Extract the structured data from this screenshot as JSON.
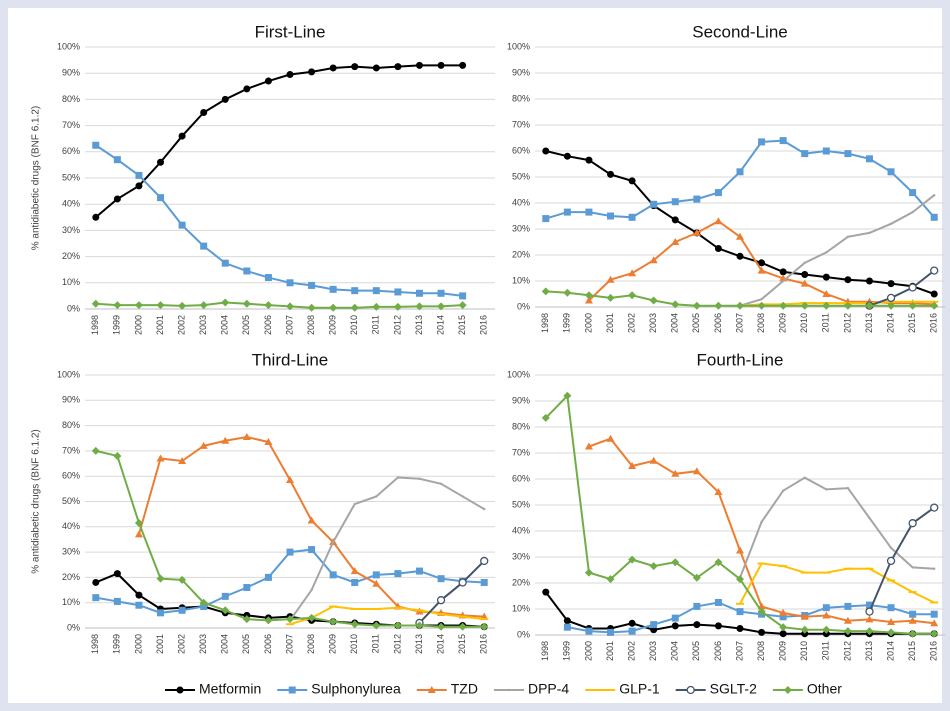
{
  "chart_data": [
    {
      "type": "line",
      "title": "First-Line",
      "ylabel": "% antidiabetic drugs (BNF 6.1.2)",
      "categories": [
        "1998",
        "1999",
        "2000",
        "2001",
        "2002",
        "2003",
        "2004",
        "2005",
        "2006",
        "2007",
        "2008",
        "2009",
        "2010",
        "2011",
        "2012",
        "2013",
        "2014",
        "2015",
        "2016"
      ],
      "ylim": [
        0,
        100
      ],
      "yticks": [
        {
          "value": 0,
          "label": "0%"
        },
        {
          "value": 10,
          "label": "10%"
        },
        {
          "value": 20,
          "label": "20%"
        },
        {
          "value": 30,
          "label": "30%"
        },
        {
          "value": 40,
          "label": "40%"
        },
        {
          "value": 50,
          "label": "50%"
        },
        {
          "value": 60,
          "label": "60%"
        },
        {
          "value": 70,
          "label": "70%"
        },
        {
          "value": 80,
          "label": "80%"
        },
        {
          "value": 90,
          "label": "90%"
        },
        {
          "value": 100,
          "label": "100%"
        }
      ],
      "grid": true,
      "series": [
        {
          "name": "Metformin",
          "color": "#000000",
          "marker": "circle",
          "values": [
            35,
            42,
            47,
            56,
            66,
            75,
            80,
            84,
            87,
            89.5,
            90.5,
            92,
            92.5,
            92,
            92.5,
            93,
            93,
            93,
            null
          ]
        },
        {
          "name": "Sulphonylurea",
          "color": "#5b9bd5",
          "marker": "square",
          "values": [
            62.5,
            57,
            51,
            42.5,
            32,
            24,
            17.5,
            14.5,
            12,
            10,
            9,
            7.5,
            7,
            7,
            6.5,
            6,
            6,
            5,
            null
          ]
        },
        {
          "name": "Other",
          "color": "#70ad47",
          "marker": "diamond",
          "values": [
            2,
            1.5,
            1.5,
            1.5,
            1.2,
            1.5,
            2.5,
            2,
            1.5,
            1,
            0.5,
            0.5,
            0.5,
            0.8,
            0.8,
            1,
            1,
            1.5,
            null
          ]
        }
      ]
    },
    {
      "type": "line",
      "title": "Second-Line",
      "categories": [
        "1998",
        "1999",
        "2000",
        "2001",
        "2002",
        "2003",
        "2004",
        "2005",
        "2006",
        "2007",
        "2008",
        "2009",
        "2010",
        "2011",
        "2012",
        "2013",
        "2014",
        "2015",
        "2016"
      ],
      "ylim": [
        0,
        100
      ],
      "yticks": [
        {
          "value": 0,
          "label": "0%"
        },
        {
          "value": 10,
          "label": "10%"
        },
        {
          "value": 20,
          "label": "20%"
        },
        {
          "value": 30,
          "label": "30%"
        },
        {
          "value": 40,
          "label": "40%"
        },
        {
          "value": 50,
          "label": "50%"
        },
        {
          "value": 60,
          "label": "60%"
        },
        {
          "value": 70,
          "label": "70%"
        },
        {
          "value": 80,
          "label": "80%"
        },
        {
          "value": 90,
          "label": "90%"
        },
        {
          "value": 100,
          "label": "100%"
        }
      ],
      "grid": true,
      "series": [
        {
          "name": "Metformin",
          "color": "#000000",
          "marker": "circle",
          "values": [
            60,
            58,
            56.5,
            51,
            48.5,
            39,
            33.5,
            28.5,
            22.5,
            19.5,
            17,
            13.5,
            12.5,
            11.5,
            10.5,
            10,
            9,
            8,
            5
          ]
        },
        {
          "name": "Sulphonylurea",
          "color": "#5b9bd5",
          "marker": "square",
          "values": [
            34,
            36.5,
            36.5,
            35,
            34.5,
            39.5,
            40.5,
            41.5,
            44,
            52,
            63.5,
            64,
            59,
            60,
            59,
            57,
            52,
            44,
            34.5
          ]
        },
        {
          "name": "TZD",
          "color": "#ed7d31",
          "marker": "triangle",
          "values": [
            null,
            null,
            2.5,
            10.5,
            13,
            18,
            25,
            28.5,
            33,
            27,
            14,
            11,
            9,
            5,
            2,
            2,
            1.5,
            1.5,
            1
          ]
        },
        {
          "name": "DPP-4",
          "color": "#a5a5a5",
          "marker": "none",
          "values": [
            null,
            null,
            null,
            null,
            null,
            null,
            null,
            null,
            null,
            0.5,
            3,
            10,
            17,
            21,
            27,
            28.5,
            32,
            36.5,
            43
          ]
        },
        {
          "name": "GLP-1",
          "color": "#ffc000",
          "marker": "dash",
          "values": [
            null,
            null,
            null,
            null,
            null,
            null,
            null,
            null,
            null,
            0.5,
            1,
            1,
            1.5,
            1.5,
            1.5,
            1.5,
            2,
            2,
            2
          ]
        },
        {
          "name": "SGLT-2",
          "color": "#44546a",
          "marker": "open-circle",
          "values": [
            null,
            null,
            null,
            null,
            null,
            null,
            null,
            null,
            null,
            null,
            null,
            null,
            null,
            null,
            null,
            0.5,
            3.5,
            7.5,
            14
          ]
        },
        {
          "name": "Other",
          "color": "#70ad47",
          "marker": "diamond",
          "values": [
            6,
            5.5,
            4.5,
            3.5,
            4.5,
            2.5,
            1,
            0.5,
            0.5,
            0.5,
            0.5,
            0.5,
            0.5,
            0.5,
            0.5,
            0.5,
            0.5,
            0.5,
            0.5
          ]
        }
      ]
    },
    {
      "type": "line",
      "title": "Third-Line",
      "ylabel": "% antidiabetic drugs (BNF 6.1.2)",
      "categories": [
        "1998",
        "1999",
        "2000",
        "2001",
        "2002",
        "2003",
        "2004",
        "2005",
        "2006",
        "2007",
        "2008",
        "2009",
        "2010",
        "2011",
        "2012",
        "2013",
        "2014",
        "2015",
        "2016"
      ],
      "ylim": [
        0,
        100
      ],
      "yticks": [
        {
          "value": 0,
          "label": "0%"
        },
        {
          "value": 10,
          "label": "10%"
        },
        {
          "value": 20,
          "label": "20%"
        },
        {
          "value": 30,
          "label": "30%"
        },
        {
          "value": 40,
          "label": "40%"
        },
        {
          "value": 50,
          "label": "50%"
        },
        {
          "value": 60,
          "label": "60%"
        },
        {
          "value": 70,
          "label": "70%"
        },
        {
          "value": 80,
          "label": "80%"
        },
        {
          "value": 90,
          "label": "90%"
        },
        {
          "value": 100,
          "label": "100%"
        }
      ],
      "grid": true,
      "series": [
        {
          "name": "Metformin",
          "color": "#000000",
          "marker": "circle",
          "values": [
            18,
            21.5,
            13,
            7.5,
            8,
            8.5,
            6,
            5,
            4,
            4.5,
            3,
            2.5,
            2,
            1.5,
            1,
            1,
            1,
            1,
            0.5
          ]
        },
        {
          "name": "Sulphonylurea",
          "color": "#5b9bd5",
          "marker": "square",
          "values": [
            12,
            10.5,
            9,
            6,
            7,
            8.5,
            12.5,
            16,
            20,
            30,
            31,
            21,
            18,
            21,
            21.5,
            22.5,
            19.5,
            18.5,
            18
          ]
        },
        {
          "name": "TZD",
          "color": "#ed7d31",
          "marker": "triangle",
          "values": [
            null,
            null,
            37,
            67,
            66,
            72,
            74,
            75.5,
            73.5,
            58.5,
            42.5,
            34,
            22.5,
            17.5,
            8.5,
            6.5,
            6,
            5,
            4.5
          ]
        },
        {
          "name": "DPP-4",
          "color": "#a5a5a5",
          "marker": "none",
          "values": [
            null,
            null,
            null,
            null,
            null,
            null,
            null,
            null,
            null,
            3,
            15,
            34,
            49,
            52,
            59.5,
            59,
            57,
            52,
            47
          ]
        },
        {
          "name": "GLP-1",
          "color": "#ffc000",
          "marker": "dash",
          "values": [
            null,
            null,
            null,
            null,
            null,
            null,
            null,
            null,
            null,
            1.5,
            4,
            8.5,
            7.5,
            7.5,
            8,
            7,
            5.5,
            4.5,
            3.5
          ]
        },
        {
          "name": "SGLT-2",
          "color": "#44546a",
          "marker": "open-circle",
          "values": [
            null,
            null,
            null,
            null,
            null,
            null,
            null,
            null,
            null,
            null,
            null,
            null,
            null,
            null,
            null,
            2,
            11,
            18,
            26.5
          ]
        },
        {
          "name": "Other",
          "color": "#70ad47",
          "marker": "diamond",
          "values": [
            70,
            68,
            41.5,
            19.5,
            19,
            10,
            7,
            3.5,
            3,
            3.5,
            4,
            2.5,
            1.5,
            1,
            1,
            1,
            0.5,
            0.5,
            0.5
          ]
        }
      ]
    },
    {
      "type": "line",
      "title": "Fourth-Line",
      "categories": [
        "1998",
        "1999",
        "2000",
        "2001",
        "2002",
        "2003",
        "2004",
        "2005",
        "2006",
        "2007",
        "2008",
        "2009",
        "2010",
        "2011",
        "2012",
        "2013",
        "2014",
        "2015",
        "2016"
      ],
      "ylim": [
        0,
        100
      ],
      "yticks": [
        {
          "value": 0,
          "label": "0%"
        },
        {
          "value": 10,
          "label": "10%"
        },
        {
          "value": 20,
          "label": "20%"
        },
        {
          "value": 30,
          "label": "30%"
        },
        {
          "value": 40,
          "label": "40%"
        },
        {
          "value": 50,
          "label": "50%"
        },
        {
          "value": 60,
          "label": "60%"
        },
        {
          "value": 70,
          "label": "70%"
        },
        {
          "value": 80,
          "label": "80%"
        },
        {
          "value": 90,
          "label": "90%"
        },
        {
          "value": 100,
          "label": "100%"
        }
      ],
      "grid": true,
      "series": [
        {
          "name": "Metformin",
          "color": "#000000",
          "marker": "circle",
          "values": [
            16.5,
            5.5,
            2.5,
            2.5,
            4.5,
            2,
            3.5,
            4,
            3.5,
            2.5,
            1,
            0.5,
            0.5,
            0.5,
            0.5,
            0.5,
            0.5,
            0.5,
            0.5
          ]
        },
        {
          "name": "Sulphonylurea",
          "color": "#5b9bd5",
          "marker": "square",
          "values": [
            null,
            3,
            1.5,
            1,
            1.5,
            4,
            6.5,
            11,
            12.5,
            9,
            8,
            7,
            7.5,
            10.5,
            11,
            11.5,
            10.5,
            8,
            8
          ]
        },
        {
          "name": "TZD",
          "color": "#ed7d31",
          "marker": "triangle",
          "values": [
            null,
            null,
            72.5,
            75.5,
            65,
            67,
            62,
            63,
            55,
            32.5,
            11,
            8.5,
            7,
            7.5,
            5.5,
            6,
            5,
            5.5,
            4.5
          ]
        },
        {
          "name": "DPP-4",
          "color": "#a5a5a5",
          "marker": "none",
          "values": [
            null,
            null,
            null,
            null,
            null,
            null,
            null,
            null,
            null,
            22,
            43.5,
            55.5,
            60.5,
            56,
            56.5,
            45,
            33.5,
            26,
            25.5
          ]
        },
        {
          "name": "GLP-1",
          "color": "#ffc000",
          "marker": "dash",
          "values": [
            null,
            null,
            null,
            null,
            null,
            null,
            null,
            null,
            null,
            12,
            27.5,
            26.5,
            24,
            24,
            25.5,
            25.5,
            21,
            16.5,
            12.5
          ]
        },
        {
          "name": "SGLT-2",
          "color": "#44546a",
          "marker": "open-circle",
          "values": [
            null,
            null,
            null,
            null,
            null,
            null,
            null,
            null,
            null,
            null,
            null,
            null,
            null,
            null,
            null,
            9,
            28.5,
            43,
            49
          ]
        },
        {
          "name": "Other",
          "color": "#70ad47",
          "marker": "diamond",
          "values": [
            83.5,
            92,
            24,
            21.5,
            29,
            26.5,
            28,
            22,
            28,
            21.5,
            9,
            3,
            2,
            2,
            1.5,
            1.5,
            1,
            0.5,
            0.5
          ]
        }
      ]
    }
  ]
}
